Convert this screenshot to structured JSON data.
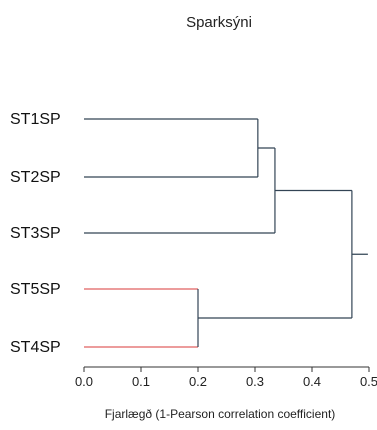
{
  "chart_data": {
    "type": "dendrogram",
    "title": "Sparksýni",
    "xlabel": "Fjarlægð (1-Pearson correlation coefficient)",
    "xlim": [
      0,
      0.5
    ],
    "xticks": [
      "0.0",
      "0.1",
      "0.2",
      "0.3",
      "0.4",
      "0.5"
    ],
    "leaves": [
      "ST1SP",
      "ST2SP",
      "ST3SP",
      "ST5SP",
      "ST4SP"
    ],
    "merges": [
      {
        "left": "ST1SP",
        "right": "ST2SP",
        "height": 0.305,
        "color": "#334455"
      },
      {
        "left": "ST5SP",
        "right": "ST4SP",
        "height": 0.2,
        "color": "#e06060"
      },
      {
        "left": "ST1SP+ST2SP",
        "right": "ST3SP",
        "height": 0.335,
        "color": "#334455"
      },
      {
        "left": "ST1SP+ST2SP+ST3SP",
        "right": "ST5SP+ST4SP",
        "height": 0.47,
        "color": "#334455"
      }
    ]
  }
}
